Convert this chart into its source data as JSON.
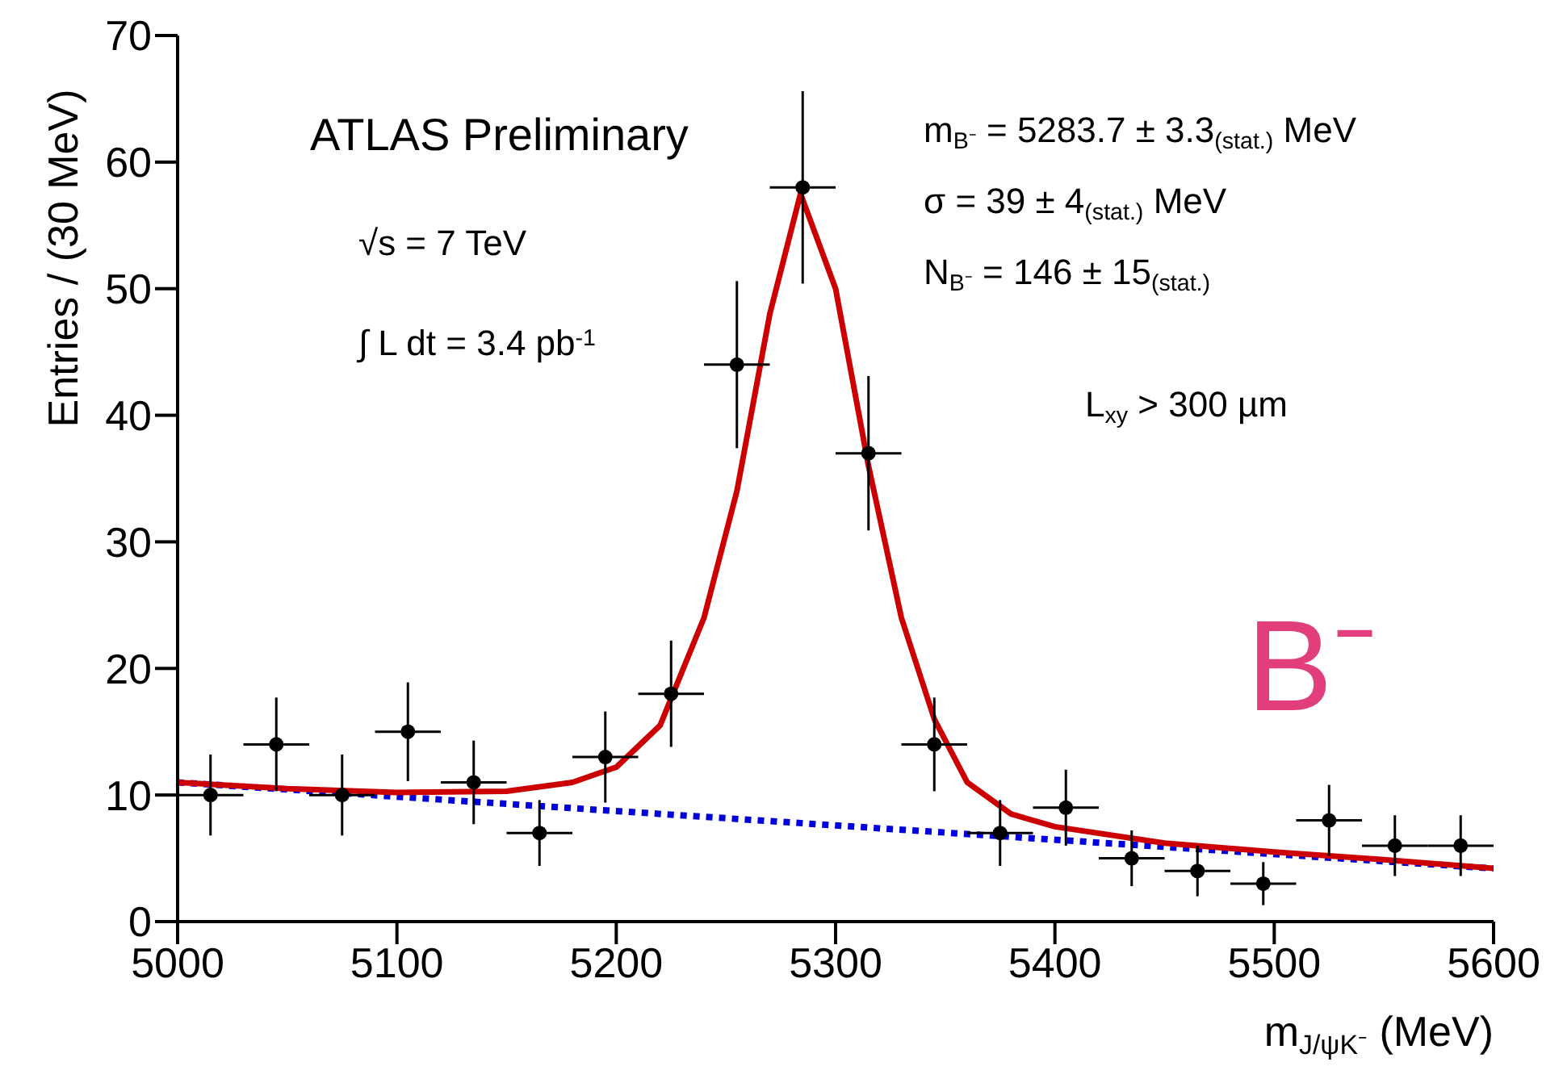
{
  "chart_data": {
    "type": "scatter",
    "xlabel": "m$_{J/ψK⁻}$ (MeV)",
    "ylabel": "Entries / (30 MeV)",
    "xlim": [
      5000,
      5600
    ],
    "xticks": [
      5000,
      5100,
      5200,
      5300,
      5400,
      5500,
      5600
    ],
    "ylim": [
      0,
      70
    ],
    "yticks": [
      0,
      10,
      20,
      30,
      40,
      50,
      60,
      70
    ],
    "annotations": [
      "ATLAS Preliminary",
      "√s = 7 TeV",
      "∫ L dt = 3.4 pb$^{-1}$",
      "m$_{B⁻}$ =  5283.7 ± 3.3$_{(stat.)}$ MeV",
      "σ =  39 ± 4$_{(stat.)}$ MeV",
      "N$_{B⁻}$ =  146 ± 15$_{(stat.)}$",
      "L$_{xy}$ > 300 µm",
      "B⁻"
    ],
    "series": [
      {
        "type": "line",
        "color": "#0000dd",
        "line_style": "dotted",
        "marker": "none",
        "x": [
          5000,
          5600
        ],
        "values": [
          11,
          4.2
        ]
      },
      {
        "type": "line",
        "color": "#cc0000",
        "line_style": "solid",
        "marker": "none",
        "x": [
          5000,
          5050,
          5100,
          5150,
          5180,
          5200,
          5220,
          5240,
          5255,
          5270,
          5284,
          5300,
          5315,
          5330,
          5345,
          5360,
          5380,
          5400,
          5450,
          5500,
          5550,
          5600
        ],
        "values": [
          11,
          10.5,
          10.2,
          10.3,
          11,
          12.2,
          15.5,
          24,
          34,
          48,
          57.5,
          50,
          36,
          24,
          16,
          11,
          8.5,
          7.5,
          6.2,
          5.5,
          4.9,
          4.2
        ]
      },
      {
        "color": "#000000",
        "marker": "circle",
        "x": [
          5015,
          5045,
          5075,
          5105,
          5135,
          5165,
          5195,
          5225,
          5255,
          5285,
          5315,
          5345,
          5375,
          5405,
          5435,
          5465,
          5495,
          5525,
          5555,
          5585
        ],
        "values": [
          10,
          14,
          10,
          15,
          11,
          7,
          13,
          18,
          44,
          58,
          37,
          14,
          7,
          9,
          5,
          4,
          3,
          8,
          6,
          6
        ],
        "errors": [
          3.2,
          3.7,
          3.2,
          3.9,
          3.3,
          2.6,
          3.6,
          4.2,
          6.6,
          7.6,
          6.1,
          3.7,
          2.6,
          3.0,
          2.2,
          2.0,
          1.7,
          2.8,
          2.4,
          2.4
        ],
        "xerrors": [
          15,
          15,
          15,
          15,
          15,
          15,
          15,
          15,
          15,
          15,
          15,
          15,
          15,
          15,
          15,
          15,
          15,
          15,
          15,
          15
        ]
      }
    ]
  }
}
